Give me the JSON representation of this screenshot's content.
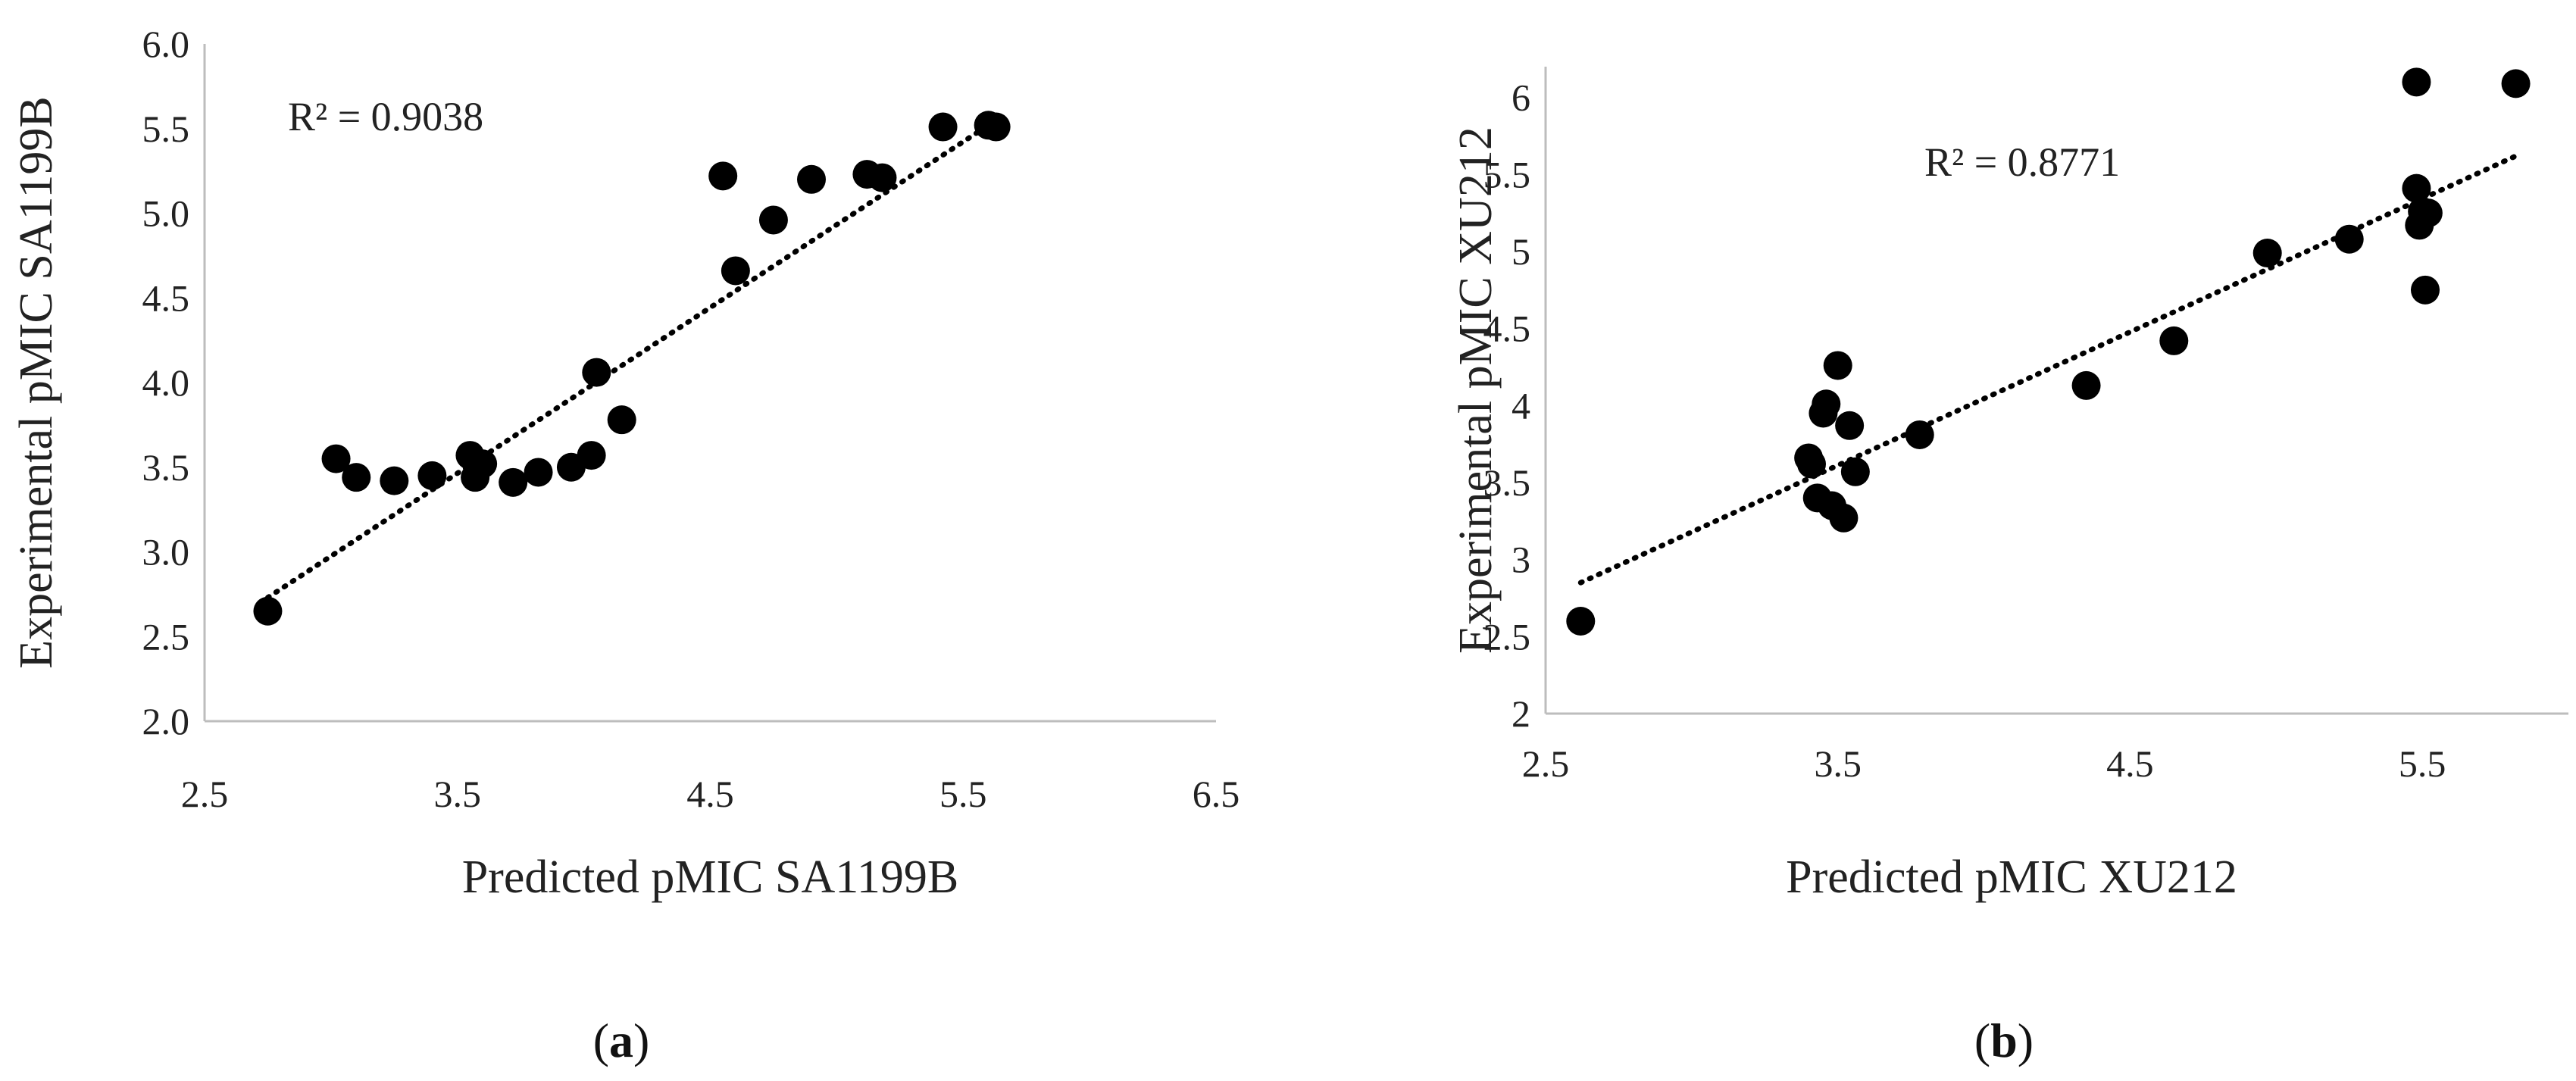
{
  "chart_data": [
    {
      "type": "scatter",
      "panel_label": "a",
      "xlabel": "Predicted pMIC SA1199B",
      "ylabel": "Experimental pMIC SA1199B",
      "annotation": "R² = 0.9038",
      "xlim": [
        2.5,
        6.5
      ],
      "ylim": [
        2.0,
        6.0
      ],
      "x_ticks": [
        "2.5",
        "3.5",
        "4.5",
        "5.5",
        "6.5"
      ],
      "y_ticks": [
        "2.0",
        "2.5",
        "3.0",
        "3.5",
        "4.0",
        "4.5",
        "5.0",
        "5.5",
        "6.0"
      ],
      "grid": false,
      "trendline": {
        "style": "dotted",
        "x": [
          2.75,
          5.6
        ],
        "y": [
          2.73,
          5.52
        ]
      },
      "series": [
        {
          "x": [
            2.75,
            3.02,
            3.1,
            3.25,
            3.4,
            3.55,
            3.57,
            3.6,
            3.72,
            3.82,
            3.95,
            4.03,
            4.05,
            4.15,
            4.55,
            4.6,
            4.75,
            4.9,
            5.12,
            5.18,
            5.42,
            5.6,
            5.63
          ],
          "y": [
            2.65,
            3.55,
            3.44,
            3.42,
            3.45,
            3.57,
            3.44,
            3.52,
            3.41,
            3.47,
            3.5,
            3.57,
            4.06,
            3.78,
            5.22,
            4.66,
            4.96,
            5.2,
            5.23,
            5.21,
            5.51,
            5.52,
            5.51
          ]
        }
      ]
    },
    {
      "type": "scatter",
      "panel_label": "b",
      "xlabel": "Predicted pMIC XU212",
      "ylabel": "Experimental pMIC XU212",
      "annotation": "R² = 0.8771",
      "xlim": [
        2.5,
        6.0
      ],
      "ylim": [
        2,
        6.2
      ],
      "x_ticks": [
        "2.5",
        "3.5",
        "4.5",
        "5.5"
      ],
      "y_ticks": [
        "2",
        "2.5",
        "3",
        "3.5",
        "4",
        "4.5",
        "5",
        "5.5",
        "6"
      ],
      "grid": false,
      "trendline": {
        "style": "dotted",
        "x": [
          2.62,
          5.82
        ],
        "y": [
          2.85,
          5.62
        ]
      },
      "series": [
        {
          "x": [
            2.62,
            3.4,
            3.41,
            3.43,
            3.45,
            3.46,
            3.48,
            3.5,
            3.52,
            3.54,
            3.56,
            3.78,
            4.35,
            4.65,
            4.97,
            5.25,
            5.48,
            5.48,
            5.49,
            5.5,
            5.51,
            5.52,
            5.82
          ],
          "y": [
            2.6,
            3.66,
            3.62,
            3.4,
            3.95,
            4.01,
            3.35,
            4.26,
            3.27,
            3.87,
            3.57,
            3.81,
            4.13,
            4.42,
            4.99,
            5.08,
            6.1,
            5.41,
            5.17,
            5.26,
            4.75,
            5.25,
            6.09
          ]
        }
      ]
    }
  ]
}
